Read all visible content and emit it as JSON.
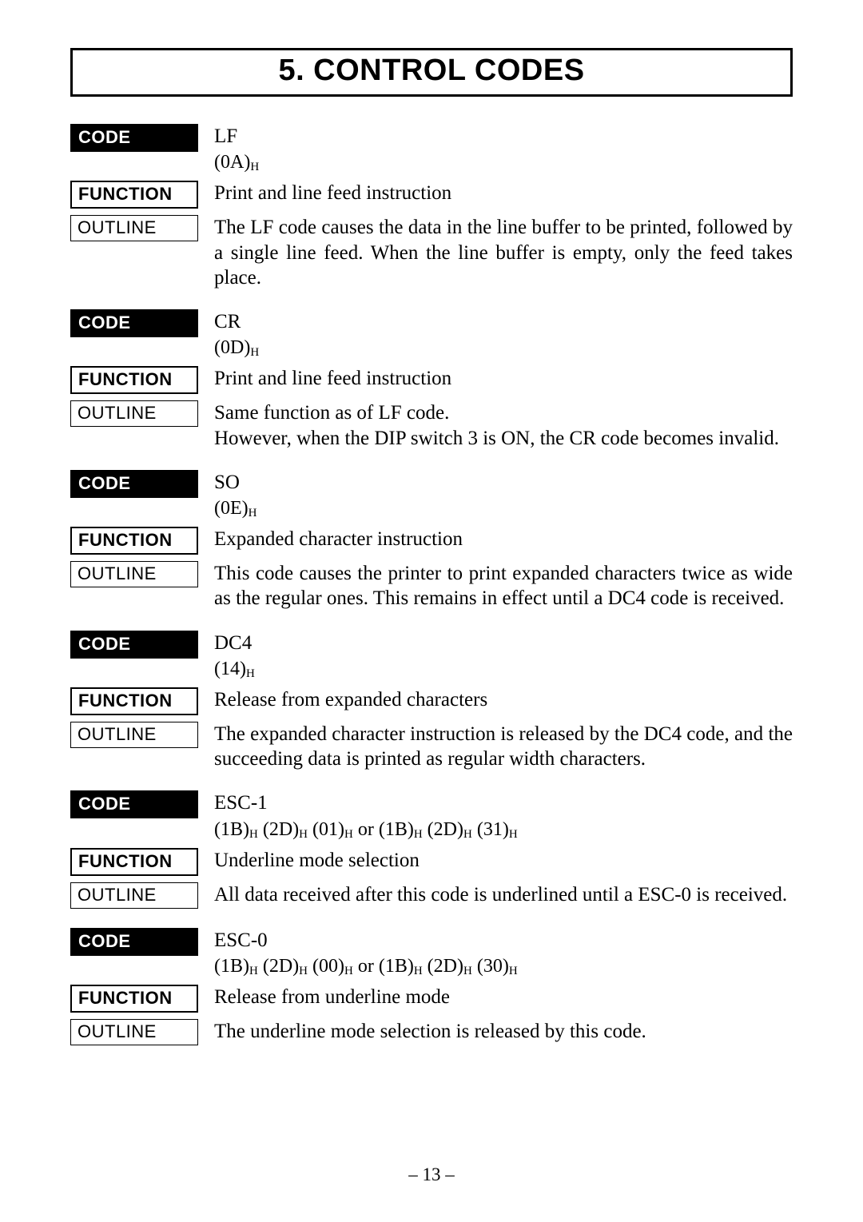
{
  "title": "5. CONTROL CODES",
  "labels": {
    "code": "CODE",
    "function": "FUNCTION",
    "outline": "OUTLINE"
  },
  "page_number": "– 13 –",
  "entries": [
    {
      "code_name": "LF",
      "hex_html": "(0A)<span class=\"h\">H</span>",
      "function": "Print and line feed instruction",
      "outline": "The LF code causes the data in the line buffer to be printed, followed by a single line feed. When the line buffer is empty, only the feed takes place."
    },
    {
      "code_name": "CR",
      "hex_html": "(0D)<span class=\"h\">H</span>",
      "function": "Print and line feed instruction",
      "outline": "Same function as of LF code.<br>However, when the DIP switch 3 is ON, the CR code becomes invalid."
    },
    {
      "code_name": "SO",
      "hex_html": "(0E)<span class=\"h\">H</span>",
      "function": "Expanded character instruction",
      "outline": "This code causes the printer to print expanded characters twice as wide as the regular ones. This remains in effect until a DC4 code is received."
    },
    {
      "code_name": "DC4",
      "hex_html": "(14)<span class=\"h\">H</span>",
      "function": "Release from expanded characters",
      "outline": "The expanded character instruction is released by the DC4 code, and the succeeding data is printed as regular width characters."
    },
    {
      "code_name": "ESC-1",
      "hex_html": "(1B)<span class=\"h\">H</span> (2D)<span class=\"h\">H</span> (01)<span class=\"h\">H</span> or (1B)<span class=\"h\">H</span> (2D)<span class=\"h\">H</span> (31)<span class=\"h\">H</span>",
      "function": "Underline mode selection",
      "outline": "All data received after this code is underlined until a ESC-0 is received."
    },
    {
      "code_name": "ESC-0",
      "hex_html": "(1B)<span class=\"h\">H</span> (2D)<span class=\"h\">H</span> (00)<span class=\"h\">H</span> or (1B)<span class=\"h\">H</span> (2D)<span class=\"h\">H</span> (30)<span class=\"h\">H</span>",
      "function": "Release from underline mode",
      "outline": "The underline mode selection is released by this code."
    }
  ]
}
